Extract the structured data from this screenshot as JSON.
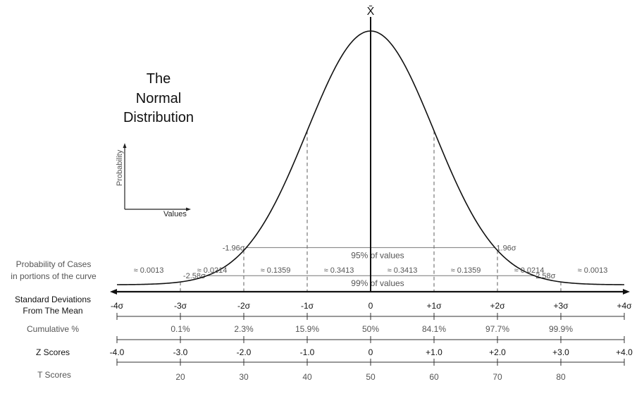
{
  "title_lines": [
    "The",
    "Normal",
    "Distribution"
  ],
  "mean_symbol": "X̄",
  "inset": {
    "y_label": "Probability",
    "x_label": "Values"
  },
  "bands": [
    {
      "left_label": "-1.96σ",
      "right_label": "1.96σ",
      "center_label": "95% of values",
      "z": 1.96
    },
    {
      "left_label": "-2.58σ",
      "right_label": "2.58σ",
      "center_label": "99% of values",
      "z": 2.58
    }
  ],
  "row_labels": {
    "probability": [
      "Probability of Cases",
      "in portions of the curve"
    ],
    "std_dev": [
      "Standard Deviations",
      "From The Mean"
    ],
    "cumulative": "Cumulative %",
    "z_scores": "Z Scores",
    "t_scores": "T Scores"
  },
  "probabilities": [
    "≈ 0.0013",
    "≈ 0.0214",
    "≈ 0.1359",
    "≈ 0.3413",
    "≈ 0.3413",
    "≈ 0.1359",
    "≈ 0.0214",
    "≈ 0.0013"
  ],
  "sigma_labels": [
    "-4σ",
    "-3σ",
    "-2σ",
    "-1σ",
    "0",
    "+1σ",
    "+2σ",
    "+3σ",
    "+4σ"
  ],
  "cumulative": [
    "0.1%",
    "2.3%",
    "15.9%",
    "50%",
    "84.1%",
    "97.7%",
    "99.9%"
  ],
  "z_scores": [
    "-4.0",
    "-3.0",
    "-2.0",
    "-1.0",
    "0",
    "+1.0",
    "+2.0",
    "+3.0",
    "+4.0"
  ],
  "t_scores": [
    "20",
    "30",
    "40",
    "50",
    "60",
    "70",
    "80"
  ]
}
